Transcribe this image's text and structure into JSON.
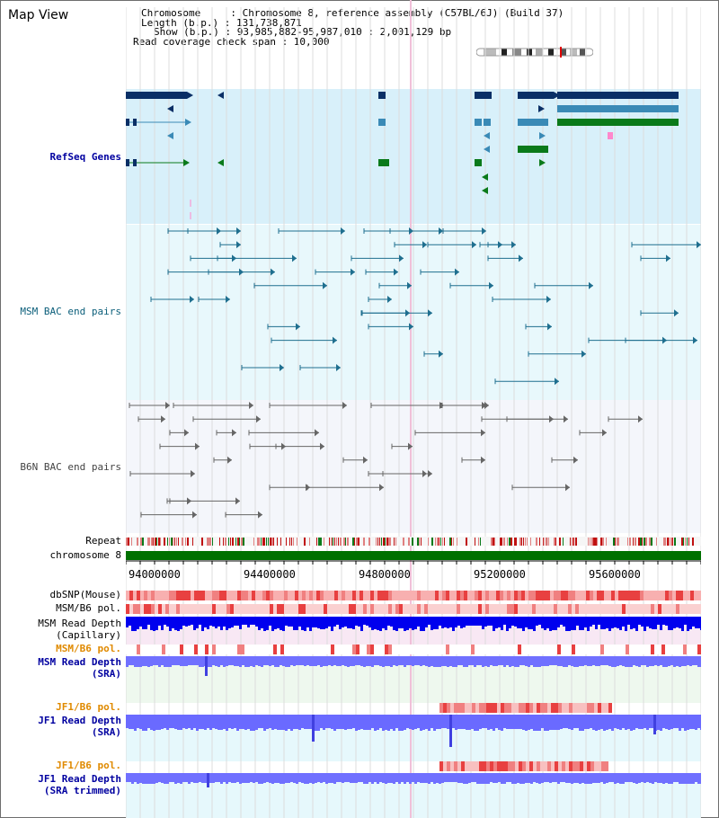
{
  "title": "Map View",
  "info": {
    "chromosome": "Chromosome     : Chromosome 8, reference assembly (C57BL/6J) (Build 37)",
    "length": "Length (b.p.) : 131,738,871",
    "show": "Show (b.p.) : 93,985,882-95,987,010 : 2,001,129 bp",
    "coverage": "Read coverage check span : 10,000"
  },
  "tracks": {
    "refseq": "RefSeq Genes",
    "msm_bac": "MSM BAC end pairs",
    "b6n_bac": "B6N BAC end pairs",
    "repeat": "Repeat",
    "chromosome": "chromosome 8",
    "dbsnp": "dbSNP(Mouse)",
    "msm_b6_pol": "MSM/B6 pol.",
    "msm_read_depth_cap_1": "MSM Read Depth",
    "msm_read_depth_cap_2": "(Capillary)",
    "msm_b6_pol_2": "MSM/B6 pol.",
    "msm_read_depth_sra_1": "MSM Read Depth",
    "msm_read_depth_sra_2": "(SRA)",
    "jf1_b6_pol": "JF1/B6 pol.",
    "jf1_read_depth_sra_1": "JF1 Read Depth",
    "jf1_read_depth_sra_2": "(SRA)",
    "jf1_b6_pol_2": "JF1/B6 pol.",
    "jf1_read_depth_trim_1": "JF1 Read Depth",
    "jf1_read_depth_trim_2": "(SRA trimmed)"
  },
  "axis_ticks": [
    "94000000",
    "94400000",
    "94800000",
    "95200000",
    "95600000"
  ],
  "colors": {
    "refseq_bg": "#d8f0fa",
    "msm_bg": "#e8f8fc",
    "b6n_bg": "#f4f6fb",
    "chromosome_bar": "#007000",
    "gene_dark": "#0a2f66",
    "gene_mid": "#3a8ab6",
    "gene_green": "#0a7a1a",
    "read_depth_blue": "#0000ee",
    "read_depth_light": "#7070ff"
  }
}
